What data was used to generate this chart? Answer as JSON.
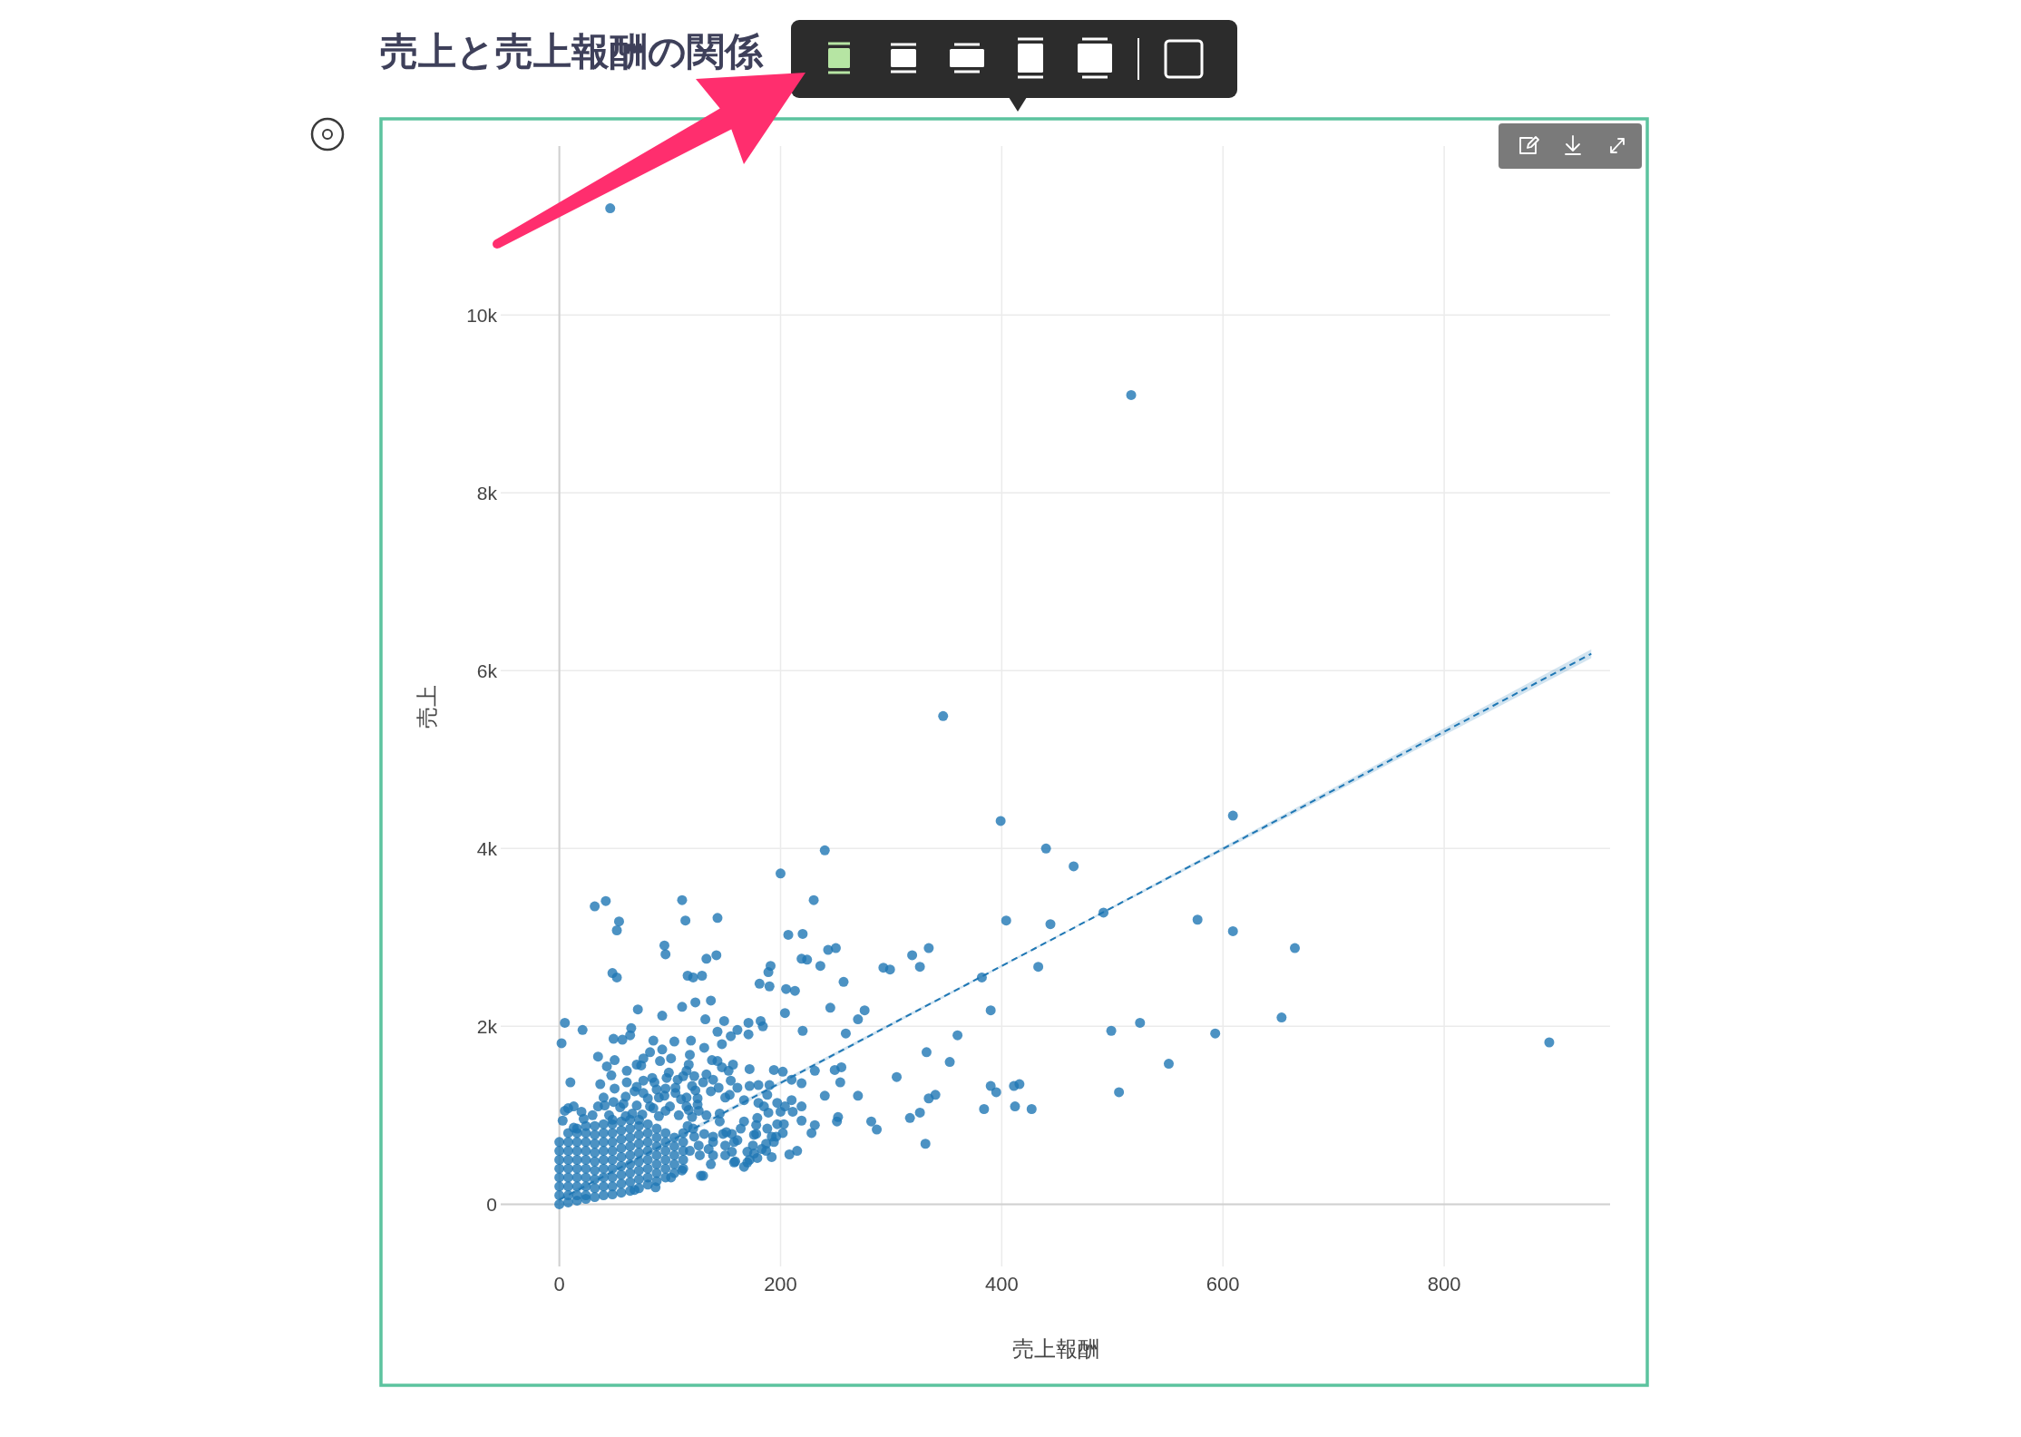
{
  "chart_data": {
    "type": "scatter",
    "title": "売上と売上報酬の関係",
    "xlabel": "売上報酬",
    "ylabel": "売上",
    "xlim": [
      -53,
      950
    ],
    "ylim": [
      -700,
      11900
    ],
    "xticks": [
      0,
      200,
      400,
      600,
      800
    ],
    "yticks": [
      0,
      {
        "value": 2000,
        "label": "2k"
      },
      {
        "value": 4000,
        "label": "4k"
      },
      {
        "value": 6000,
        "label": "6k"
      },
      {
        "value": 8000,
        "label": "8k"
      },
      {
        "value": 10000,
        "label": "10k"
      }
    ],
    "grid": true,
    "marker": "circle",
    "series": [
      {
        "type": "scatter",
        "color": "#1f77b4",
        "x": [
          46,
          517,
          347,
          399,
          609,
          240,
          440,
          465,
          200,
          32,
          42,
          111,
          230,
          54,
          52,
          114,
          143,
          404,
          444,
          492,
          577,
          609,
          665,
          95,
          207,
          220,
          243,
          250,
          334,
          319,
          326,
          433,
          382,
          390,
          360,
          499,
          525,
          593,
          653,
          895,
          551,
          506,
          353,
          332,
          390,
          395,
          411,
          416,
          384,
          412,
          427,
          334,
          340,
          326,
          317,
          331,
          96,
          142,
          133,
          219,
          224,
          236,
          191,
          189,
          293,
          299,
          48,
          52,
          116,
          121,
          129,
          181,
          190,
          205,
          213,
          257,
          71,
          123,
          137,
          111,
          245,
          276,
          270,
          5,
          21,
          2,
          65,
          93,
          132,
          149,
          143,
          171,
          182,
          184,
          220,
          259,
          305,
          282,
          287,
          270,
          255,
          254,
          249,
          240,
          251,
          252,
          231,
          231,
          219,
          215,
          208,
          203,
          211,
          219,
          3,
          35,
          50,
          43,
          47,
          10,
          37,
          61,
          49,
          64,
          57,
          85,
          104,
          119,
          131,
          147,
          155,
          161,
          171,
          204,
          228,
          202,
          194,
          202,
          210,
          180,
          190,
          172,
          157,
          161,
          154,
          167,
          180,
          185,
          179,
          189,
          197,
          204,
          210,
          219,
          197,
          192,
          196,
          187,
          187,
          192,
          176,
          179,
          172,
          167,
          159,
          150,
          137,
          128,
          111,
          101,
          87,
          68,
          126,
          123,
          137,
          139,
          147,
          153,
          138,
          143,
          117,
          122,
          118,
          112,
          97,
          101,
          93,
          91,
          76,
          74,
          70,
          82,
          86,
          96,
          76,
          68,
          58,
          49,
          41,
          13,
          8,
          5,
          13,
          22,
          90,
          100,
          110,
          82,
          96,
          108,
          66,
          30,
          20,
          115,
          105,
          115,
          117,
          126,
          131,
          135,
          139,
          148,
          150,
          156,
          161,
          156,
          167,
          178,
          175,
          183,
          178,
          0,
          0,
          0,
          0,
          0,
          0,
          0,
          0,
          8,
          8,
          8,
          8,
          8,
          8,
          8,
          8,
          8,
          16,
          16,
          16,
          16,
          16,
          16,
          16,
          16,
          16,
          16,
          24,
          24,
          24,
          24,
          24,
          24,
          24,
          24,
          24,
          24,
          32,
          32,
          32,
          32,
          32,
          32,
          32,
          32,
          32,
          40,
          40,
          40,
          40,
          40,
          40,
          40,
          40,
          40,
          48,
          48,
          48,
          48,
          48,
          48,
          48,
          48,
          48,
          48,
          56,
          56,
          56,
          56,
          56,
          56,
          56,
          56,
          56,
          64,
          64,
          64,
          64,
          64,
          64,
          64,
          64,
          64,
          72,
          72,
          72,
          72,
          72,
          72,
          72,
          72,
          72,
          80,
          80,
          80,
          80,
          80,
          80,
          80,
          80,
          88,
          88,
          88,
          88,
          88,
          88,
          88,
          96,
          96,
          96,
          96,
          96,
          96,
          104,
          104,
          104,
          104,
          104,
          112,
          112,
          112,
          112,
          45,
          60,
          75,
          90,
          120,
          35,
          55,
          70,
          85,
          125,
          40,
          60,
          80,
          95,
          125,
          50,
          70,
          88,
          105,
          120,
          61,
          76,
          84,
          99,
          107,
          115,
          130,
          133,
          144,
          150,
          155,
          172,
          188,
          200,
          121,
          139,
          145,
          151,
          158,
          164,
          170,
          176,
          188,
          194,
          158,
          170,
          139,
          127,
          130,
          118,
          122,
          112,
          116,
          133,
          145
        ],
        "values": [
          11200,
          9100,
          5490,
          4310,
          4370,
          3980,
          4000,
          3800,
          3720,
          3350,
          3410,
          3420,
          3420,
          3180,
          3080,
          3190,
          3220,
          3190,
          3150,
          3280,
          3200,
          3070,
          2880,
          2910,
          3030,
          3040,
          2860,
          2880,
          2880,
          2800,
          2670,
          2670,
          2550,
          2180,
          1900,
          1950,
          2040,
          1920,
          2100,
          1820,
          1580,
          1260,
          1600,
          1710,
          1330,
          1260,
          1330,
          1350,
          1070,
          1100,
          1070,
          1190,
          1230,
          1030,
          970,
          680,
          2810,
          2800,
          2760,
          2760,
          2750,
          2680,
          2680,
          2610,
          2660,
          2640,
          2600,
          2550,
          2570,
          2550,
          2570,
          2480,
          2450,
          2420,
          2400,
          2500,
          2190,
          2270,
          2290,
          2220,
          2210,
          2180,
          2080,
          2040,
          1960,
          1810,
          1980,
          2120,
          2080,
          2060,
          1940,
          2040,
          2060,
          2000,
          1950,
          1920,
          1430,
          930,
          840,
          1220,
          1540,
          1370,
          1510,
          1220,
          930,
          980,
          1500,
          890,
          1360,
          600,
          560,
          900,
          1040,
          1100,
          940,
          1660,
          1620,
          1550,
          1450,
          1370,
          1350,
          1370,
          1860,
          1900,
          1850,
          1840,
          1830,
          1840,
          1760,
          1800,
          1890,
          1960,
          1910,
          2150,
          800,
          800,
          1510,
          1490,
          1400,
          1340,
          1340,
          1520,
          1570,
          1310,
          1230,
          1170,
          1140,
          1100,
          970,
          1030,
          1140,
          1100,
          1170,
          940,
          900,
          760,
          760,
          680,
          600,
          530,
          570,
          520,
          500,
          420,
          480,
          550,
          450,
          320,
          380,
          300,
          190,
          160,
          1050,
          1280,
          1270,
          1400,
          1540,
          1500,
          1620,
          1610,
          1570,
          1440,
          1680,
          1440,
          1420,
          1640,
          1740,
          1610,
          1640,
          1560,
          1570,
          1710,
          1370,
          1300,
          1250,
          1270,
          1130,
          1150,
          1110,
          1100,
          1080,
          1050,
          860,
          960,
          1200,
          1100,
          1180,
          1100,
          1050,
          1000,
          1020,
          1000,
          1040,
          1100,
          1250,
          1200,
          1060,
          660,
          790,
          620,
          760,
          790,
          660,
          790,
          720,
          590,
          930,
          890,
          660,
          620,
          790,
          0,
          100,
          200,
          300,
          400,
          500,
          600,
          700,
          20,
          100,
          200,
          300,
          400,
          500,
          600,
          700,
          800,
          40,
          100,
          200,
          300,
          400,
          500,
          600,
          700,
          800,
          850,
          60,
          100,
          200,
          300,
          400,
          500,
          600,
          700,
          800,
          880,
          80,
          180,
          280,
          380,
          480,
          580,
          680,
          780,
          880,
          100,
          200,
          300,
          400,
          500,
          600,
          700,
          800,
          900,
          110,
          200,
          300,
          400,
          500,
          600,
          700,
          800,
          900,
          950,
          130,
          230,
          330,
          430,
          530,
          630,
          730,
          830,
          930,
          150,
          250,
          350,
          450,
          550,
          650,
          750,
          850,
          950,
          180,
          280,
          380,
          480,
          580,
          680,
          780,
          880,
          950,
          220,
          300,
          400,
          500,
          600,
          700,
          800,
          900,
          260,
          350,
          450,
          550,
          650,
          750,
          850,
          300,
          400,
          500,
          600,
          700,
          800,
          350,
          450,
          550,
          650,
          750,
          400,
          500,
          600,
          700,
          1000,
          990,
          1010,
          990,
          980,
          1100,
          1090,
          1110,
          1080,
          1120,
          1200,
          1210,
          1190,
          1220,
          1190,
          1300,
          1320,
          1290,
          1310,
          1330,
          1500,
          1390,
          1420,
          1480,
          1400,
          1500,
          1370,
          1460,
          1310,
          1200,
          1390,
          1330,
          1230,
          1040,
          850,
          700,
          930,
          810,
          700,
          850,
          590,
          780,
          850,
          700,
          470,
          470,
          550,
          550,
          320,
          600,
          760,
          800,
          880,
          1000,
          1020
        ]
      },
      {
        "type": "line",
        "color": "#1f77b4",
        "marker": "none",
        "line_style": "dashed",
        "x": [
          0,
          467,
          933
        ],
        "values": [
          50,
          3120,
          6190
        ],
        "lower": [
          20,
          3110,
          6140
        ],
        "upper": [
          80,
          3130,
          6240
        ]
      }
    ]
  }
}
